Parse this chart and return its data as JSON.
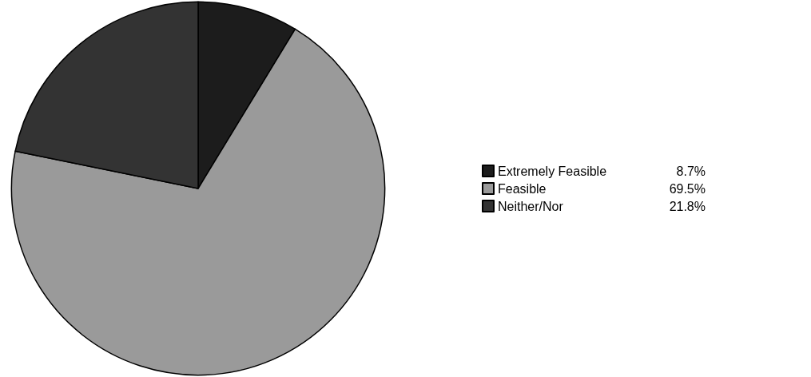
{
  "chart_data": {
    "type": "pie",
    "categories": [
      "Extremely Feasible",
      "Feasible",
      "Neither/Nor"
    ],
    "values": [
      8.7,
      69.5,
      21.8
    ],
    "value_labels": [
      "8.7%",
      "69.5%",
      "21.8%"
    ],
    "colors": [
      "#1c1c1c",
      "#9a9a9a",
      "#333333"
    ],
    "legend": "right"
  }
}
